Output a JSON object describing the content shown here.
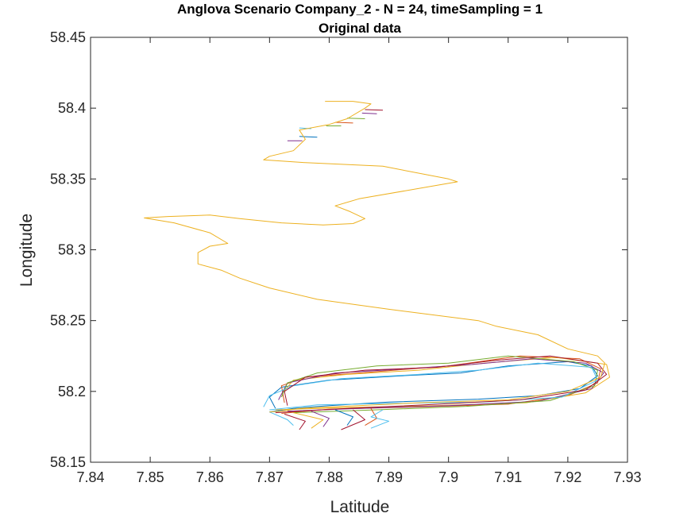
{
  "chart_data": {
    "type": "line",
    "title": "Anglova Scenario Company_2 - N = 24, timeSampling = 1",
    "subtitle": "Original data",
    "xlabel": "Latitude",
    "ylabel": "Longitude",
    "xlim": [
      7.84,
      7.93
    ],
    "ylim": [
      58.15,
      58.45
    ],
    "xticks": [
      7.84,
      7.85,
      7.86,
      7.87,
      7.88,
      7.89,
      7.9,
      7.91,
      7.92,
      7.93
    ],
    "xtick_labels": [
      "7.84",
      "7.85",
      "7.86",
      "7.87",
      "7.88",
      "7.89",
      "7.9",
      "7.91",
      "7.92",
      "7.93"
    ],
    "yticks": [
      58.15,
      58.2,
      58.25,
      58.3,
      58.35,
      58.4,
      58.45
    ],
    "ytick_labels": [
      "58.15",
      "58.2",
      "58.25",
      "58.3",
      "58.35",
      "58.4",
      "58.45"
    ],
    "grid": false,
    "box": true,
    "colors": [
      "#0072BD",
      "#D95319",
      "#EDB120",
      "#7E2F8E",
      "#77AC30",
      "#4DBEEE",
      "#A2142F"
    ],
    "route": [
      [
        7.8793,
        58.4048
      ],
      [
        7.884,
        58.4048
      ],
      [
        7.887,
        58.403
      ],
      [
        7.886,
        58.4
      ],
      [
        7.883,
        58.3925
      ],
      [
        7.88,
        58.3885
      ],
      [
        7.875,
        58.3845
      ],
      [
        7.876,
        58.378
      ],
      [
        7.874,
        58.37
      ],
      [
        7.87,
        58.366
      ],
      [
        7.869,
        58.3635
      ],
      [
        7.876,
        58.3615
      ],
      [
        7.889,
        58.359
      ],
      [
        7.9,
        58.35
      ],
      [
        7.9015,
        58.348
      ],
      [
        7.896,
        58.344
      ],
      [
        7.885,
        58.336
      ],
      [
        7.881,
        58.331
      ],
      [
        7.8835,
        58.327
      ],
      [
        7.886,
        58.322
      ],
      [
        7.884,
        58.3185
      ],
      [
        7.879,
        58.3175
      ],
      [
        7.872,
        58.319
      ],
      [
        7.865,
        58.322
      ],
      [
        7.86,
        58.3245
      ],
      [
        7.853,
        58.3235
      ],
      [
        7.849,
        58.3225
      ],
      [
        7.854,
        58.319
      ],
      [
        7.86,
        58.312
      ],
      [
        7.863,
        58.3045
      ],
      [
        7.86,
        58.3025
      ],
      [
        7.858,
        58.298
      ],
      [
        7.858,
        58.29
      ],
      [
        7.862,
        58.2855
      ],
      [
        7.865,
        58.28
      ],
      [
        7.87,
        58.273
      ],
      [
        7.878,
        58.265
      ],
      [
        7.89,
        58.258
      ],
      [
        7.905,
        58.25
      ],
      [
        7.908,
        58.246
      ],
      [
        7.915,
        58.24
      ],
      [
        7.92,
        58.23
      ],
      [
        7.925,
        58.225
      ],
      [
        7.9262,
        58.22
      ],
      [
        7.9255,
        58.21
      ],
      [
        7.92,
        58.2
      ],
      [
        7.91,
        58.194
      ],
      [
        7.895,
        58.192
      ],
      [
        7.885,
        58.19
      ],
      [
        7.875,
        58.188
      ],
      [
        7.872,
        58.186
      ],
      [
        7.87,
        58.1855
      ]
    ],
    "loop_tracks": [
      {
        "color": "#0072BD",
        "points": [
          [
            7.87,
            58.1855
          ],
          [
            7.874,
            58.188
          ],
          [
            7.88,
            58.19
          ],
          [
            7.89,
            58.1925
          ],
          [
            7.905,
            58.1945
          ],
          [
            7.915,
            58.197
          ],
          [
            7.922,
            58.202
          ],
          [
            7.925,
            58.211
          ],
          [
            7.924,
            58.218
          ],
          [
            7.92,
            58.221
          ],
          [
            7.91,
            58.218
          ],
          [
            7.902,
            58.213
          ],
          [
            7.892,
            58.211
          ],
          [
            7.88,
            58.208
          ],
          [
            7.872,
            58.203
          ],
          [
            7.87,
            58.196
          ],
          [
            7.871,
            58.188
          ]
        ]
      },
      {
        "color": "#D95319",
        "points": [
          [
            7.872,
            58.1845
          ],
          [
            7.88,
            58.1875
          ],
          [
            7.895,
            58.189
          ],
          [
            7.91,
            58.191
          ],
          [
            7.92,
            58.197
          ],
          [
            7.925,
            58.206
          ],
          [
            7.9255,
            58.216
          ],
          [
            7.922,
            58.223
          ],
          [
            7.912,
            58.225
          ],
          [
            7.9,
            58.218
          ],
          [
            7.888,
            58.214
          ],
          [
            7.876,
            58.21
          ],
          [
            7.872,
            58.204
          ],
          [
            7.8725,
            58.192
          ]
        ]
      },
      {
        "color": "#EDB120",
        "points": [
          [
            7.871,
            58.187
          ],
          [
            7.882,
            58.1885
          ],
          [
            7.898,
            58.19
          ],
          [
            7.913,
            58.192
          ],
          [
            7.923,
            58.199
          ],
          [
            7.927,
            58.21
          ],
          [
            7.9265,
            58.219
          ],
          [
            7.918,
            58.224
          ],
          [
            7.906,
            58.22
          ],
          [
            7.895,
            58.215
          ],
          [
            7.883,
            58.212
          ],
          [
            7.874,
            58.208
          ],
          [
            7.872,
            58.198
          ]
        ]
      },
      {
        "color": "#7E2F8E",
        "points": [
          [
            7.873,
            58.186
          ],
          [
            7.885,
            58.188
          ],
          [
            7.9,
            58.19
          ],
          [
            7.915,
            58.193
          ],
          [
            7.924,
            58.202
          ],
          [
            7.926,
            58.213
          ],
          [
            7.923,
            58.22
          ],
          [
            7.914,
            58.223
          ],
          [
            7.904,
            58.219
          ],
          [
            7.893,
            58.216
          ],
          [
            7.881,
            58.213
          ],
          [
            7.873,
            58.206
          ],
          [
            7.8715,
            58.194
          ]
        ]
      },
      {
        "color": "#77AC30",
        "points": [
          [
            7.874,
            58.185
          ],
          [
            7.888,
            58.187
          ],
          [
            7.903,
            58.1895
          ],
          [
            7.917,
            58.1935
          ],
          [
            7.9245,
            58.204
          ],
          [
            7.925,
            58.215
          ],
          [
            7.921,
            58.221
          ],
          [
            7.91,
            58.225
          ],
          [
            7.9,
            58.22
          ],
          [
            7.888,
            58.218
          ],
          [
            7.878,
            58.213
          ],
          [
            7.873,
            58.206
          ],
          [
            7.872,
            58.196
          ]
        ]
      },
      {
        "color": "#4DBEEE",
        "points": [
          [
            7.87,
            58.187
          ],
          [
            7.878,
            58.1905
          ],
          [
            7.89,
            58.1915
          ],
          [
            7.906,
            58.1925
          ],
          [
            7.919,
            58.196
          ],
          [
            7.925,
            58.208
          ],
          [
            7.924,
            58.217
          ],
          [
            7.915,
            58.22
          ],
          [
            7.905,
            58.215
          ],
          [
            7.895,
            58.212
          ],
          [
            7.882,
            58.209
          ],
          [
            7.874,
            58.204
          ],
          [
            7.87,
            58.197
          ],
          [
            7.869,
            58.189
          ]
        ]
      },
      {
        "color": "#A2142F",
        "points": [
          [
            7.871,
            58.185
          ],
          [
            7.883,
            58.188
          ],
          [
            7.896,
            58.1905
          ],
          [
            7.912,
            58.194
          ],
          [
            7.923,
            58.201
          ],
          [
            7.9265,
            58.212
          ],
          [
            7.925,
            58.22
          ],
          [
            7.917,
            58.225
          ],
          [
            7.908,
            58.222
          ],
          [
            7.898,
            58.217
          ],
          [
            7.886,
            58.215
          ],
          [
            7.876,
            58.21
          ],
          [
            7.8725,
            58.2
          ],
          [
            7.873,
            58.19
          ]
        ]
      }
    ],
    "tails_bottom": [
      {
        "color": "#4DBEEE",
        "points": [
          [
            7.87,
            58.1855
          ],
          [
            7.873,
            58.18
          ],
          [
            7.874,
            58.176
          ]
        ]
      },
      {
        "color": "#A2142F",
        "points": [
          [
            7.8725,
            58.184
          ],
          [
            7.876,
            58.179
          ],
          [
            7.875,
            58.173
          ]
        ]
      },
      {
        "color": "#EDB120",
        "points": [
          [
            7.874,
            58.185
          ],
          [
            7.879,
            58.18
          ],
          [
            7.877,
            58.174
          ]
        ]
      },
      {
        "color": "#7E2F8E",
        "points": [
          [
            7.877,
            58.186
          ],
          [
            7.88,
            58.181
          ],
          [
            7.879,
            58.175
          ]
        ]
      },
      {
        "color": "#0072BD",
        "points": [
          [
            7.881,
            58.187
          ],
          [
            7.884,
            58.182
          ],
          [
            7.883,
            58.176
          ]
        ]
      },
      {
        "color": "#A2142F",
        "points": [
          [
            7.884,
            58.187
          ],
          [
            7.886,
            58.18
          ],
          [
            7.882,
            58.173
          ]
        ]
      },
      {
        "color": "#D95319",
        "points": [
          [
            7.887,
            58.188
          ],
          [
            7.888,
            58.181
          ],
          [
            7.886,
            58.176
          ]
        ]
      },
      {
        "color": "#4DBEEE",
        "points": [
          [
            7.889,
            58.187
          ],
          [
            7.887,
            58.182
          ],
          [
            7.89,
            58.179
          ],
          [
            7.887,
            58.174
          ]
        ]
      }
    ],
    "tails_top": [
      {
        "color": "#A2142F",
        "points": [
          [
            7.886,
            58.399
          ],
          [
            7.889,
            58.3985
          ]
        ]
      },
      {
        "color": "#7E2F8E",
        "points": [
          [
            7.8855,
            58.3965
          ],
          [
            7.888,
            58.396
          ]
        ]
      },
      {
        "color": "#77AC30",
        "points": [
          [
            7.883,
            58.393
          ],
          [
            7.886,
            58.3925
          ]
        ]
      },
      {
        "color": "#D95319",
        "points": [
          [
            7.881,
            58.39
          ],
          [
            7.884,
            58.3895
          ]
        ]
      },
      {
        "color": "#0072BD",
        "points": [
          [
            7.875,
            58.38
          ],
          [
            7.878,
            58.3795
          ]
        ]
      },
      {
        "color": "#7E2F8E",
        "points": [
          [
            7.8755,
            58.377
          ],
          [
            7.873,
            58.377
          ]
        ]
      },
      {
        "color": "#4DBEEE",
        "points": [
          [
            7.875,
            58.386
          ],
          [
            7.877,
            58.3855
          ]
        ]
      },
      {
        "color": "#77AC30",
        "points": [
          [
            7.882,
            58.3875
          ],
          [
            7.8795,
            58.3875
          ]
        ]
      }
    ]
  }
}
